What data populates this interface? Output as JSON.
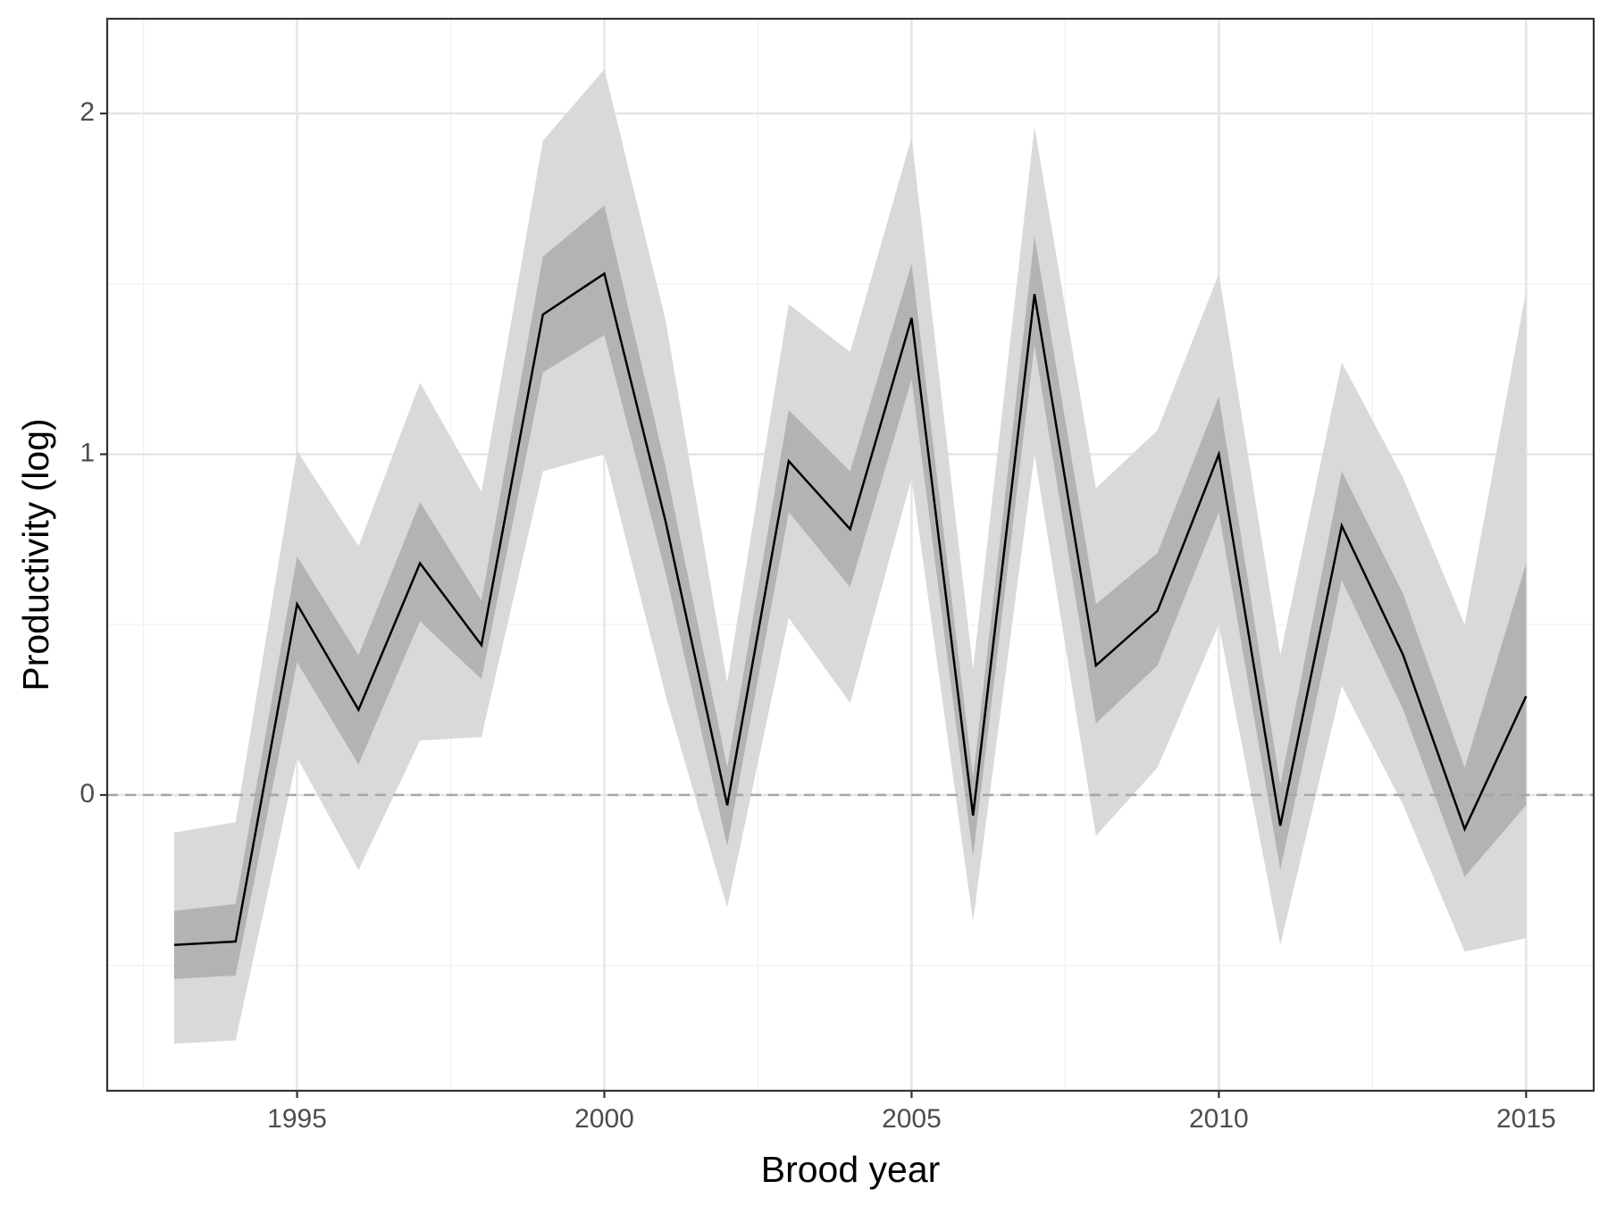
{
  "chart_data": {
    "type": "ribbon_line",
    "x_label": "Brood year",
    "y_label": "Productivity (log)",
    "x": [
      1993,
      1994,
      1995,
      1996,
      1997,
      1998,
      1999,
      2000,
      2001,
      2002,
      2003,
      2004,
      2005,
      2006,
      2007,
      2008,
      2009,
      2010,
      2011,
      2012,
      2013,
      2014,
      2015
    ],
    "median": [
      -0.44,
      -0.43,
      0.56,
      0.25,
      0.68,
      0.44,
      1.41,
      1.53,
      0.8,
      -0.03,
      0.98,
      0.78,
      1.4,
      -0.06,
      1.47,
      0.38,
      0.54,
      1.0,
      -0.09,
      0.79,
      0.41,
      -0.1,
      0.29
    ],
    "inner_band": {
      "color": "#b3b3b3",
      "lower": [
        -0.54,
        -0.53,
        0.39,
        0.09,
        0.51,
        0.34,
        1.24,
        1.35,
        0.65,
        -0.15,
        0.83,
        0.61,
        1.22,
        -0.18,
        1.32,
        0.21,
        0.38,
        0.83,
        -0.22,
        0.63,
        0.25,
        -0.24,
        -0.03
      ],
      "upper": [
        -0.34,
        -0.32,
        0.7,
        0.41,
        0.86,
        0.57,
        1.58,
        1.73,
        0.96,
        0.08,
        1.13,
        0.95,
        1.56,
        0.05,
        1.64,
        0.56,
        0.71,
        1.17,
        0.03,
        0.95,
        0.59,
        0.08,
        0.68
      ]
    },
    "outer_band": {
      "color": "#d9d9d9",
      "lower": [
        -0.73,
        -0.72,
        0.11,
        -0.22,
        0.16,
        0.17,
        0.95,
        1.0,
        0.29,
        -0.33,
        0.52,
        0.27,
        0.93,
        -0.37,
        1.0,
        -0.12,
        0.08,
        0.5,
        -0.44,
        0.32,
        -0.03,
        -0.46,
        -0.42
      ],
      "upper": [
        -0.11,
        -0.08,
        1.01,
        0.73,
        1.21,
        0.89,
        1.92,
        2.13,
        1.39,
        0.33,
        1.44,
        1.3,
        1.93,
        0.37,
        1.96,
        0.9,
        1.07,
        1.53,
        0.41,
        1.27,
        0.93,
        0.5,
        1.48
      ]
    },
    "line_color": "#000000",
    "reference_line": 0,
    "reference_color": "#a6a6a6",
    "xlim": [
      1991.91,
      2016.1
    ],
    "ylim": [
      -0.868,
      2.278
    ],
    "xticks": [
      1995,
      2000,
      2005,
      2010,
      2015
    ],
    "yticks": [
      0,
      1,
      2
    ],
    "x_minor_grid": [
      1992.5,
      1997.5,
      2002.5,
      2007.5,
      2012.5
    ],
    "y_minor_grid": [
      -0.5,
      0.5,
      1.5
    ],
    "grid": true
  }
}
